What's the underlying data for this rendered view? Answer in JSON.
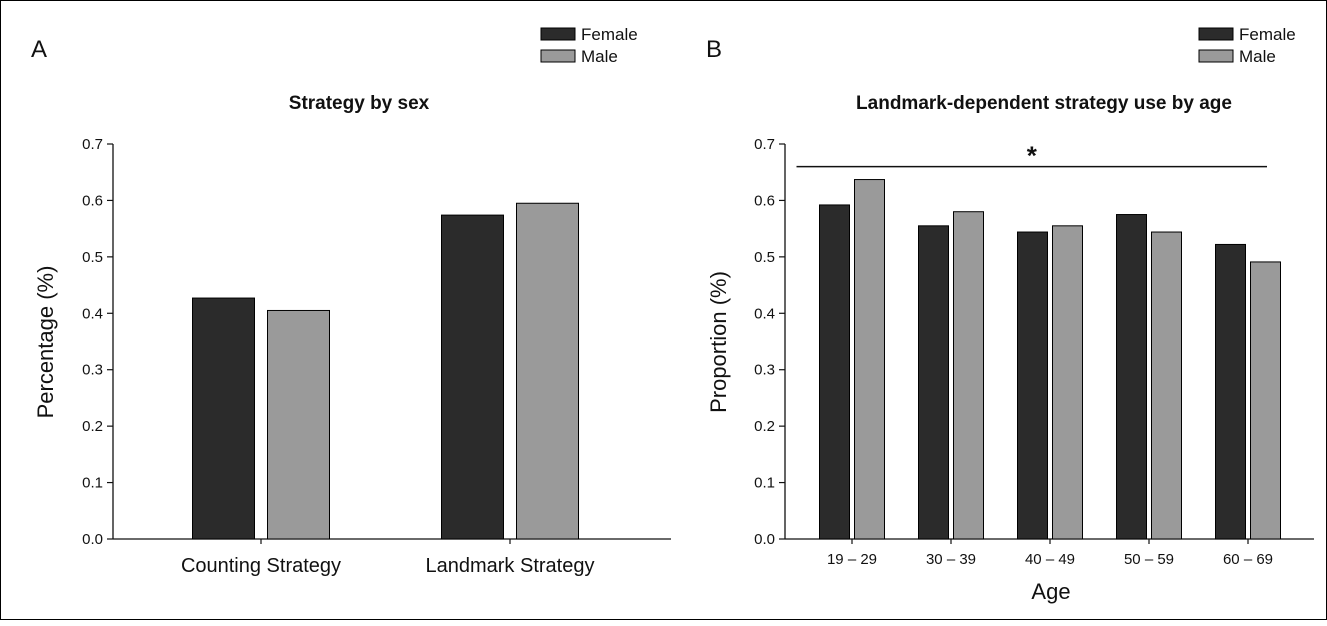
{
  "chart_data": [
    {
      "panel": "A",
      "type": "bar",
      "title": "Strategy by sex",
      "xlabel": "",
      "ylabel": "Percentage (%)",
      "categories": [
        "Counting Strategy",
        "Landmark Strategy"
      ],
      "series": [
        {
          "name": "Female",
          "color": "#2b2b2b",
          "values": [
            0.427,
            0.574
          ]
        },
        {
          "name": "Male",
          "color": "#9a9a9a",
          "values": [
            0.405,
            0.595
          ]
        }
      ],
      "ylim": [
        0,
        0.7
      ],
      "yticks": [
        "0.0",
        "0.1",
        "0.2",
        "0.3",
        "0.4",
        "0.5",
        "0.6",
        "0.7"
      ],
      "legend_position": "top-right",
      "grid": false
    },
    {
      "panel": "B",
      "type": "bar",
      "title": "Landmark-dependent strategy use by age",
      "xlabel": "Age",
      "ylabel": "Proportion (%)",
      "categories": [
        "19 – 29",
        "30 – 39",
        "40 – 49",
        "50 – 59",
        "60 – 69"
      ],
      "series": [
        {
          "name": "Female",
          "color": "#2b2b2b",
          "values": [
            0.592,
            0.555,
            0.544,
            0.575,
            0.522
          ]
        },
        {
          "name": "Male",
          "color": "#9a9a9a",
          "values": [
            0.637,
            0.58,
            0.555,
            0.544,
            0.491
          ]
        }
      ],
      "ylim": [
        0,
        0.7
      ],
      "yticks": [
        "0.0",
        "0.1",
        "0.2",
        "0.3",
        "0.4",
        "0.5",
        "0.6",
        "0.7"
      ],
      "significance": {
        "marker": "*",
        "span": [
          "19 – 29",
          "60 – 69"
        ],
        "level": 0.66
      },
      "legend_position": "top-right",
      "grid": false
    }
  ]
}
